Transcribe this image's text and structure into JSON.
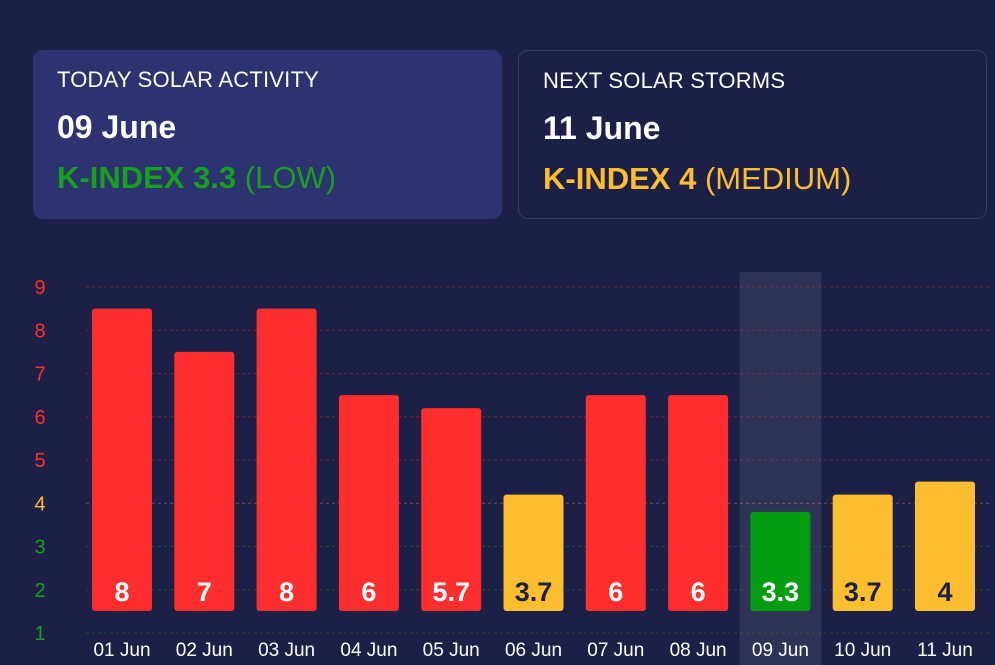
{
  "today": {
    "heading": "TODAY SOLAR ACTIVITY",
    "date": "09 June",
    "kindex_label": "K-INDEX 3.3",
    "level": "(LOW)",
    "color": "#17a01a"
  },
  "next": {
    "heading": "NEXT SOLAR STORMS",
    "date": "11 June",
    "kindex_label": "K-INDEX 4",
    "level": "(MEDIUM)",
    "color": "#fcbd2f"
  },
  "chart_data": {
    "type": "bar",
    "categories": [
      "01 Jun",
      "02 Jun",
      "03 Jun",
      "04 Jun",
      "05 Jun",
      "06 Jun",
      "07 Jun",
      "08 Jun",
      "09 Jun",
      "10 Jun",
      "11 Jun"
    ],
    "values": [
      8,
      7,
      8,
      6,
      5.7,
      3.7,
      6,
      6,
      3.3,
      3.7,
      4
    ],
    "data_labels": [
      "8",
      "7",
      "8",
      "6",
      "5.7",
      "3.7",
      "6",
      "6",
      "3.3",
      "3.7",
      "4"
    ],
    "bar_colors": [
      "#ff2e2e",
      "#ff2e2e",
      "#ff2e2e",
      "#ff2e2e",
      "#ff2e2e",
      "#fcbd2f",
      "#ff2e2e",
      "#ff2e2e",
      "#039d12",
      "#fcbd2f",
      "#fcbd2f"
    ],
    "label_colors": [
      "#ffffff",
      "#ffffff",
      "#ffffff",
      "#ffffff",
      "#ffffff",
      "#1c2046",
      "#ffffff",
      "#ffffff",
      "#ffffff",
      "#1c2046",
      "#1c2046"
    ],
    "highlighted_category": "09 Jun",
    "y_ticks": [
      1,
      2,
      3,
      4,
      5,
      6,
      7,
      8,
      9
    ],
    "y_tick_colors": [
      "#17a01a",
      "#17a01a",
      "#17a01a",
      "#fcbd2f",
      "#ff2e2e",
      "#ff2e2e",
      "#ff2e2e",
      "#ff2e2e",
      "#ff2e2e"
    ],
    "ylim": [
      1,
      9
    ],
    "grid": true,
    "title": "",
    "xlabel": "",
    "ylabel": ""
  }
}
